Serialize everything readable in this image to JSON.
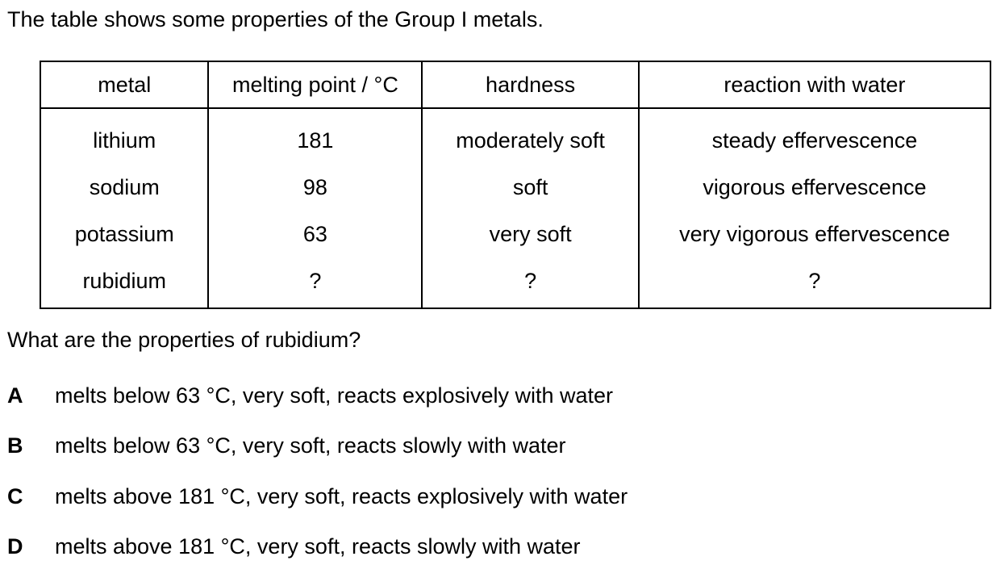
{
  "intro": "The table shows some properties of the Group I metals.",
  "table": {
    "headers": [
      "metal",
      "melting point / °C",
      "hardness",
      "reaction with water"
    ],
    "rows": [
      [
        "lithium",
        "181",
        "moderately soft",
        "steady effervescence"
      ],
      [
        "sodium",
        "98",
        "soft",
        "vigorous effervescence"
      ],
      [
        "potassium",
        "63",
        "very soft",
        "very vigorous effervescence"
      ],
      [
        "rubidium",
        "?",
        "?",
        "?"
      ]
    ]
  },
  "question": "What are the properties of rubidium?",
  "options": [
    {
      "letter": "A",
      "text": "melts below 63 °C, very soft, reacts explosively with water"
    },
    {
      "letter": "B",
      "text": "melts below 63 °C, very soft, reacts slowly with water"
    },
    {
      "letter": "C",
      "text": "melts above 181 °C, very soft, reacts explosively with water"
    },
    {
      "letter": "D",
      "text": "melts above 181 °C, very soft, reacts slowly with water"
    }
  ]
}
